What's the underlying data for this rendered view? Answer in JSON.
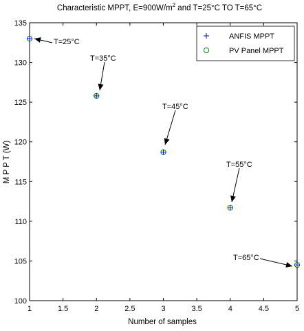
{
  "chart_data": {
    "type": "scatter",
    "title": "Characteristic MPPT, E=900W/m",
    "title_sup": "2",
    "title_suffix": " and  T=25°C TO T=65°C",
    "xlabel": "Number of samples",
    "ylabel": "M P P T  (W)",
    "xlim": [
      1,
      5
    ],
    "ylim": [
      100,
      135
    ],
    "x_ticks": [
      1,
      1.5,
      2,
      2.5,
      3,
      3.5,
      4,
      4.5,
      5
    ],
    "y_ticks": [
      100,
      105,
      110,
      115,
      120,
      125,
      130,
      135
    ],
    "x_tick_labels": [
      "1",
      "1.5",
      "2",
      "2.5",
      "3",
      "3.5",
      "4",
      "4.5",
      "5"
    ],
    "y_tick_labels": [
      "100",
      "105",
      "110",
      "115",
      "120",
      "125",
      "130",
      "135"
    ],
    "grid": false,
    "legend_position": "top-right",
    "series": [
      {
        "name": "ANFIS MPPT",
        "marker": "+",
        "color": "#0000ff",
        "x": [
          1,
          2,
          3,
          4,
          5
        ],
        "y": [
          133.0,
          125.8,
          118.7,
          111.7,
          104.5
        ]
      },
      {
        "name": "PV Panel MPPT",
        "marker": "o",
        "color": "#008000",
        "x": [
          1,
          2,
          3,
          4,
          5
        ],
        "y": [
          133.0,
          125.8,
          118.7,
          111.7,
          104.5
        ]
      }
    ],
    "annotations": [
      {
        "text": "T=25°C",
        "x": 1,
        "y": 133.0
      },
      {
        "text": "T=35°C",
        "x": 2,
        "y": 125.8
      },
      {
        "text": "T=45°C",
        "x": 3,
        "y": 118.7
      },
      {
        "text": "T=55°C",
        "x": 4,
        "y": 111.7
      },
      {
        "text": "T=65°C",
        "x": 5,
        "y": 104.5
      }
    ]
  }
}
